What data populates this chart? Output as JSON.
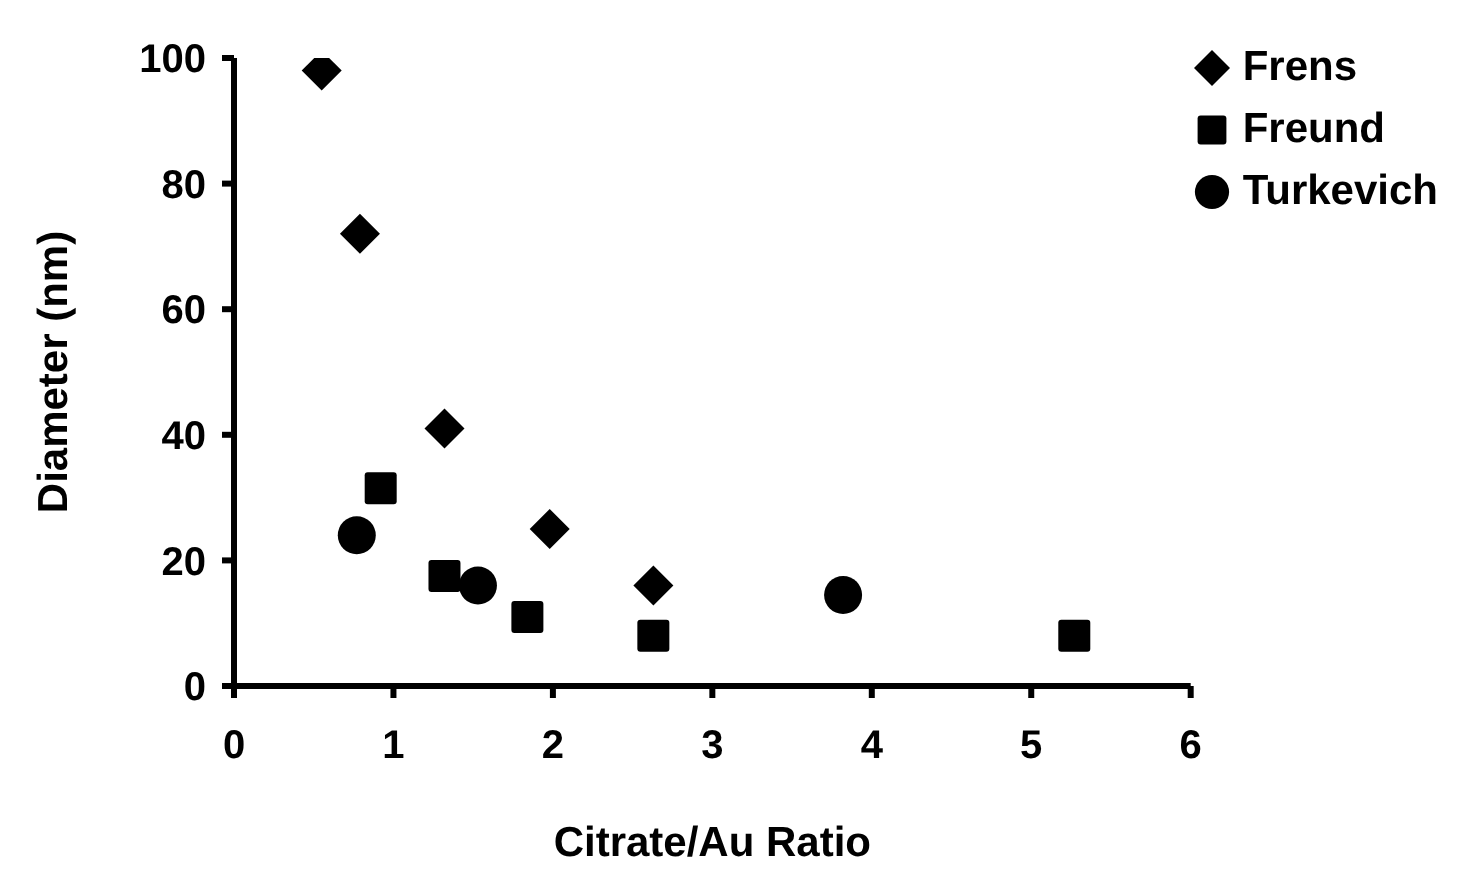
{
  "chart_data": {
    "type": "scatter",
    "xlabel": "Citrate/Au Ratio",
    "ylabel": "Diameter (nm)",
    "xlim": [
      0,
      6
    ],
    "xticks": [
      0,
      1,
      2,
      3,
      4,
      5,
      6
    ],
    "ylim": [
      0,
      100
    ],
    "yticks": [
      0,
      20,
      40,
      60,
      80,
      100
    ],
    "grid": false,
    "legend": "top right",
    "series": [
      {
        "name": "Frens",
        "color": "#000000",
        "marker": "diamond",
        "x": [
          0.55,
          0.79,
          1.32,
          1.98,
          2.63
        ],
        "values": [
          98,
          72,
          41,
          25,
          16
        ]
      },
      {
        "name": "Freund",
        "color": "#000000",
        "marker": "square",
        "x": [
          0.92,
          1.32,
          1.84,
          2.63,
          5.27
        ],
        "values": [
          31.5,
          17.5,
          11,
          8,
          8
        ]
      },
      {
        "name": "Turkevich",
        "color": "#000000",
        "marker": "circle",
        "x": [
          0.77,
          1.53,
          3.82
        ],
        "values": [
          24,
          16,
          14.5
        ]
      }
    ]
  }
}
